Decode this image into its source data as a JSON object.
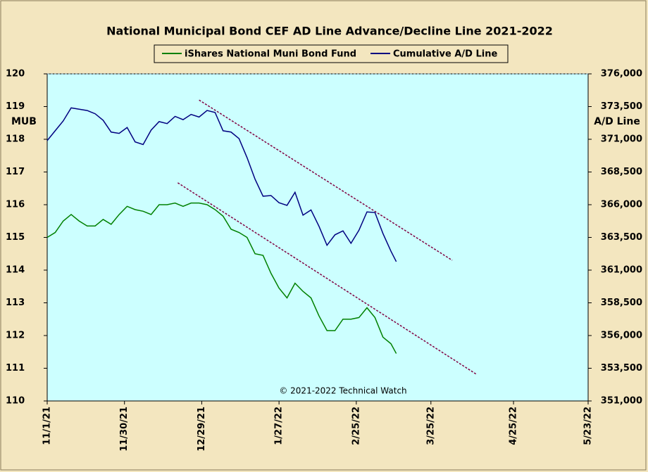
{
  "chart_data": {
    "type": "line",
    "title": "National Municipal Bond CEF AD Line Advance/Decline Line 2021-2022",
    "ylabel": "MUB",
    "y2label": "A/D Line",
    "annotation": "© 2021-2022 Technical Watch",
    "x": [
      "11/1/21",
      "11/4/21",
      "11/7/21",
      "11/10/21",
      "11/13/21",
      "11/16/21",
      "11/19/21",
      "11/22/21",
      "11/25/21",
      "11/28/21",
      "12/1/21",
      "12/4/21",
      "12/7/21",
      "12/10/21",
      "12/13/21",
      "12/16/21",
      "12/19/21",
      "12/22/21",
      "12/25/21",
      "12/28/21",
      "12/31/21",
      "1/3/22",
      "1/6/22",
      "1/9/22",
      "1/12/22",
      "1/15/22",
      "1/18/22",
      "1/21/22",
      "1/24/22",
      "1/27/22",
      "1/30/22",
      "2/2/22",
      "2/5/22",
      "2/8/22",
      "2/11/22",
      "2/14/22",
      "2/17/22",
      "2/20/22",
      "2/23/22",
      "2/26/22",
      "3/1/22",
      "3/4/22",
      "3/7/22",
      "3/10/22",
      "3/12/22"
    ],
    "series": [
      {
        "name": "iShares National Muni Bond Fund",
        "color": "#008000",
        "axis": "y",
        "values": [
          115.0,
          115.15,
          115.5,
          115.7,
          115.5,
          115.35,
          115.35,
          115.55,
          115.4,
          115.7,
          115.95,
          115.85,
          115.8,
          115.7,
          116.0,
          116.0,
          116.05,
          115.95,
          116.05,
          116.05,
          116.0,
          115.85,
          115.65,
          115.25,
          115.15,
          115.0,
          114.5,
          114.45,
          113.9,
          113.45,
          113.15,
          113.6,
          113.35,
          113.15,
          112.6,
          112.15,
          112.15,
          112.5,
          112.5,
          112.55,
          112.85,
          112.55,
          111.95,
          111.75,
          111.45
        ]
      },
      {
        "name": "Cumulative A/D Line",
        "color": "#000080",
        "axis": "y2",
        "values": [
          370900,
          371650,
          372400,
          373400,
          373300,
          373200,
          372950,
          372450,
          371550,
          371450,
          371900,
          370800,
          370600,
          371700,
          372350,
          372200,
          372750,
          372500,
          372900,
          372700,
          373200,
          373050,
          371650,
          371550,
          371050,
          369600,
          367950,
          366650,
          366700,
          366150,
          365950,
          366950,
          365200,
          365600,
          364350,
          362900,
          363700,
          364000,
          363050,
          364050,
          365450,
          365400,
          363800,
          362450,
          361650
        ]
      }
    ],
    "trendlines": [
      {
        "axis": "y2",
        "color": "#800040",
        "x": [
          "12/28/21",
          "4/2/22"
        ],
        "values": [
          374000,
          361750
        ]
      },
      {
        "axis": "y",
        "color": "#800040",
        "x": [
          "12/20/21",
          "4/11/22"
        ],
        "values": [
          116.67,
          110.82
        ]
      }
    ],
    "xlim": [
      "11/1/21",
      "5/23/22"
    ],
    "xticks": [
      "11/1/21",
      "11/30/21",
      "12/29/21",
      "1/27/22",
      "2/25/22",
      "3/25/22",
      "4/25/22",
      "5/23/22"
    ],
    "ylim": [
      110,
      120
    ],
    "yticks": [
      110,
      111,
      112,
      113,
      114,
      115,
      116,
      117,
      118,
      119,
      120
    ],
    "y2lim": [
      351000,
      376000
    ],
    "y2ticks": [
      {
        "value": 351000,
        "label": "351,000"
      },
      {
        "value": 353500,
        "label": "353,500"
      },
      {
        "value": 356000,
        "label": "356,000"
      },
      {
        "value": 358500,
        "label": "358,500"
      },
      {
        "value": 361000,
        "label": "361,000"
      },
      {
        "value": 363500,
        "label": "363,500"
      },
      {
        "value": 366000,
        "label": "366,000"
      },
      {
        "value": 368500,
        "label": "368,500"
      },
      {
        "value": 371000,
        "label": "371,000"
      },
      {
        "value": 373500,
        "label": "373,500"
      },
      {
        "value": 376000,
        "label": "376,000"
      }
    ],
    "background": "#ccffff"
  }
}
